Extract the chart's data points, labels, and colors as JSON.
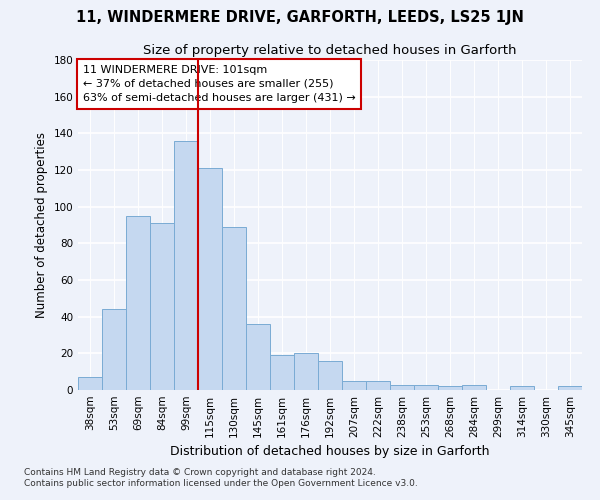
{
  "title": "11, WINDERMERE DRIVE, GARFORTH, LEEDS, LS25 1JN",
  "subtitle": "Size of property relative to detached houses in Garforth",
  "xlabel": "Distribution of detached houses by size in Garforth",
  "ylabel": "Number of detached properties",
  "categories": [
    "38sqm",
    "53sqm",
    "69sqm",
    "84sqm",
    "99sqm",
    "115sqm",
    "130sqm",
    "145sqm",
    "161sqm",
    "176sqm",
    "192sqm",
    "207sqm",
    "222sqm",
    "238sqm",
    "253sqm",
    "268sqm",
    "284sqm",
    "299sqm",
    "314sqm",
    "330sqm",
    "345sqm"
  ],
  "values": [
    7,
    44,
    95,
    91,
    136,
    121,
    89,
    36,
    19,
    20,
    16,
    5,
    5,
    3,
    3,
    2,
    3,
    0,
    2,
    0,
    2
  ],
  "bar_color": "#c5d8f0",
  "bar_edge_color": "#7aabd4",
  "property_line_index": 4,
  "annotation_line1": "11 WINDERMERE DRIVE: 101sqm",
  "annotation_line2": "← 37% of detached houses are smaller (255)",
  "annotation_line3": "63% of semi-detached houses are larger (431) →",
  "annotation_box_color": "#ffffff",
  "annotation_box_edge_color": "#cc0000",
  "property_line_color": "#cc0000",
  "ylim": [
    0,
    180
  ],
  "yticks": [
    0,
    20,
    40,
    60,
    80,
    100,
    120,
    140,
    160,
    180
  ],
  "footer_line1": "Contains HM Land Registry data © Crown copyright and database right 2024.",
  "footer_line2": "Contains public sector information licensed under the Open Government Licence v3.0.",
  "bg_color": "#eef2fa",
  "grid_color": "#ffffff",
  "title_fontsize": 10.5,
  "subtitle_fontsize": 9.5,
  "xlabel_fontsize": 9,
  "ylabel_fontsize": 8.5,
  "tick_fontsize": 7.5,
  "annotation_fontsize": 8,
  "footer_fontsize": 6.5
}
